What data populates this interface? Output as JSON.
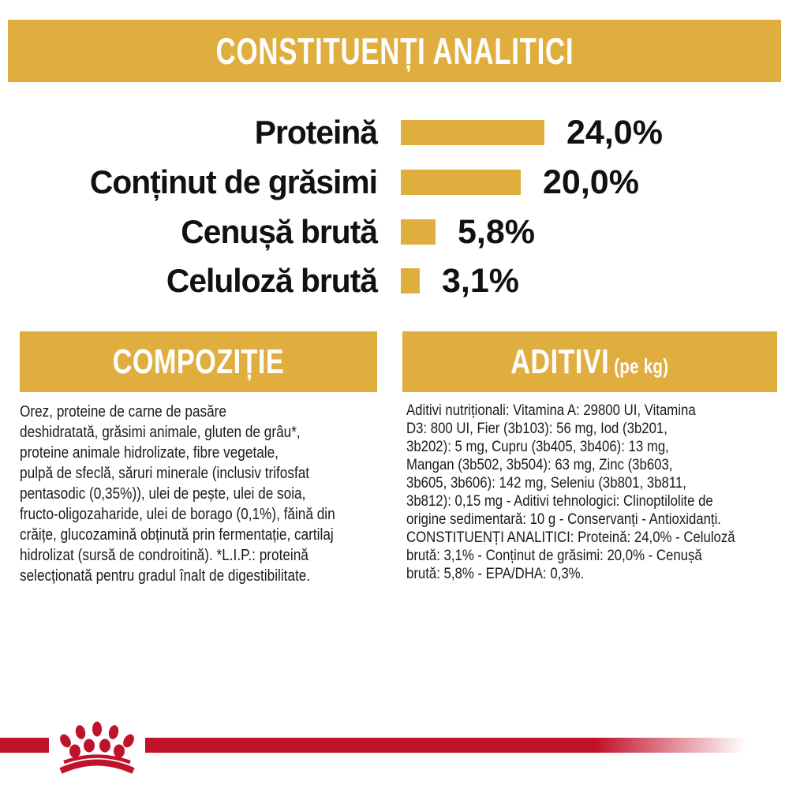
{
  "colors": {
    "gold": "#dfae3e",
    "red": "#c0122b",
    "text": "#1a1a1a",
    "banner_text": "#ffffff"
  },
  "header": {
    "title": "CONSTITUENȚI ANALITICI"
  },
  "chart_data": {
    "type": "bar",
    "orientation": "horizontal",
    "title": "CONSTITUENȚI ANALITICI",
    "categories": [
      "Proteină",
      "Conținut de grăsimi",
      "Cenușă brută",
      "Celuloză brută"
    ],
    "values": [
      24.0,
      20.0,
      5.8,
      3.1
    ],
    "value_labels": [
      "24,0%",
      "20,0%",
      "5,8%",
      "3,1%"
    ],
    "unit": "%",
    "xlim": [
      0,
      24
    ],
    "bar_color": "#dfae3e",
    "grid": false,
    "legend": false
  },
  "sections": {
    "composition": {
      "title": "COMPOZIȚIE",
      "lines": [
        "Orez, proteine de carne de pasăre",
        "deshidratată, grăsimi animale, gluten de grâu*,",
        "proteine animale hidrolizate, fibre vegetale,",
        "pulpă de sfeclă, săruri minerale (inclusiv trifosfat",
        "pentasodic (0,35%)), ulei de pește, ulei de soia,",
        "fructo-oligozaharide, ulei de borago (0,1%), făină din",
        "crăițe, glucozamină obținută prin fermentație, cartilaj",
        "hidrolizat (sursă de condroitină). *L.I.P.: proteină",
        "selecționată pentru gradul înalt de digestibilitate."
      ]
    },
    "additives": {
      "title": "ADITIVI",
      "title_suffix": "(pe kg)",
      "lines": [
        "Aditivi nutriționali: Vitamina A: 29800 UI, Vitamina",
        "D3: 800 UI, Fier (3b103): 56 mg, Iod (3b201,",
        "3b202): 5 mg, Cupru (3b405, 3b406): 13 mg,",
        "Mangan (3b502, 3b504): 63 mg, Zinc (3b603,",
        "3b605, 3b606): 142 mg, Seleniu (3b801, 3b811,",
        "3b812): 0,15 mg - Aditivi tehnologici: Clinoptilolite de",
        "origine sedimentară: 10 g - Conservanți - Antioxidanți.",
        "CONSTITUENȚI ANALITICI: Proteină: 24,0% - Celuloză",
        "brută: 3,1% - Conținut de grăsimi: 20,0% - Cenușă",
        "brută: 5,8% - EPA/DHA: 0,3%."
      ]
    }
  },
  "footer": {
    "logo": "royal-canin-crown-paw-logo"
  }
}
